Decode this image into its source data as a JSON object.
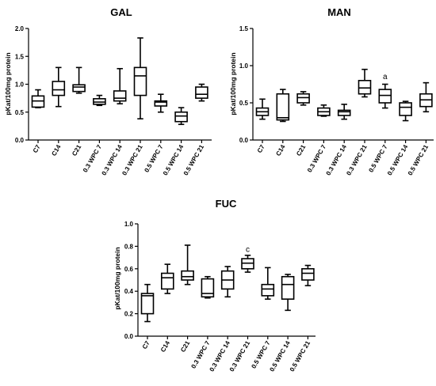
{
  "chart_data": [
    {
      "type": "box",
      "title": "GAL",
      "ylabel": "pKat/100mg protein",
      "ylim": [
        0,
        2.0
      ],
      "yticks": [
        "0.0",
        "0.5",
        "1.0",
        "1.5",
        "2.0"
      ],
      "categories": [
        "C7",
        "C14",
        "C21",
        "0.3 WPC 7",
        "0.3 WPC 14",
        "0.3 WPC 21",
        "0.5 WPC 7",
        "0.5 WPC 14",
        "0.5 WPC 21"
      ],
      "boxes": [
        {
          "min": 0.58,
          "q1": 0.59,
          "median": 0.7,
          "q3": 0.79,
          "max": 0.9
        },
        {
          "min": 0.6,
          "q1": 0.8,
          "median": 0.9,
          "q3": 1.05,
          "max": 1.3
        },
        {
          "min": 0.84,
          "q1": 0.87,
          "median": 0.95,
          "q3": 0.99,
          "max": 1.3
        },
        {
          "min": 0.62,
          "q1": 0.64,
          "median": 0.68,
          "q3": 0.74,
          "max": 0.8
        },
        {
          "min": 0.65,
          "q1": 0.7,
          "median": 0.75,
          "q3": 0.88,
          "max": 1.28
        },
        {
          "min": 0.38,
          "q1": 0.8,
          "median": 1.15,
          "q3": 1.3,
          "max": 1.83
        },
        {
          "min": 0.5,
          "q1": 0.61,
          "median": 0.68,
          "q3": 0.7,
          "max": 0.82
        },
        {
          "min": 0.28,
          "q1": 0.33,
          "median": 0.43,
          "q3": 0.5,
          "max": 0.58
        },
        {
          "min": 0.7,
          "q1": 0.75,
          "median": 0.82,
          "q3": 0.95,
          "max": 1.0
        }
      ],
      "annotations": []
    },
    {
      "type": "box",
      "title": "MAN",
      "ylabel": "pKat/100mg protein",
      "ylim": [
        0,
        1.5
      ],
      "yticks": [
        "0.0",
        "0.5",
        "1.0",
        "1.5"
      ],
      "categories": [
        "C7",
        "C14",
        "C21",
        "0.3 WPC 7",
        "0.3 WPC 14",
        "0.3 WPC 21",
        "0.5 WPC 7",
        "0.5 WPC 14",
        "0.5 WPC 21"
      ],
      "boxes": [
        {
          "min": 0.28,
          "q1": 0.33,
          "median": 0.38,
          "q3": 0.43,
          "max": 0.55
        },
        {
          "min": 0.25,
          "q1": 0.27,
          "median": 0.3,
          "q3": 0.62,
          "max": 0.68
        },
        {
          "min": 0.47,
          "q1": 0.5,
          "median": 0.57,
          "q3": 0.62,
          "max": 0.65
        },
        {
          "min": 0.32,
          "q1": 0.33,
          "median": 0.38,
          "q3": 0.43,
          "max": 0.47
        },
        {
          "min": 0.28,
          "q1": 0.33,
          "median": 0.38,
          "q3": 0.4,
          "max": 0.48
        },
        {
          "min": 0.58,
          "q1": 0.62,
          "median": 0.7,
          "q3": 0.8,
          "max": 0.95
        },
        {
          "min": 0.43,
          "q1": 0.5,
          "median": 0.6,
          "q3": 0.68,
          "max": 0.75
        },
        {
          "min": 0.26,
          "q1": 0.33,
          "median": 0.44,
          "q3": 0.5,
          "max": 0.52
        },
        {
          "min": 0.38,
          "q1": 0.45,
          "median": 0.54,
          "q3": 0.62,
          "max": 0.77
        }
      ],
      "annotations": [
        {
          "category": "0.5 WPC 7",
          "text": "a",
          "y": 0.82
        }
      ]
    },
    {
      "type": "box",
      "title": "FUC",
      "ylabel": "pKat/100mg protein",
      "ylim": [
        0,
        1.0
      ],
      "yticks": [
        "0.0",
        "0.2",
        "0.4",
        "0.6",
        "0.8",
        "1.0"
      ],
      "categories": [
        "C7",
        "C14",
        "C21",
        "0.3 WPC 7",
        "0.3 WPC 14",
        "0.3 WPC 21",
        "0.5 WPC 7",
        "0.5 WPC 14",
        "0.5 WPC 21"
      ],
      "boxes": [
        {
          "min": 0.13,
          "q1": 0.2,
          "median": 0.36,
          "q3": 0.38,
          "max": 0.46
        },
        {
          "min": 0.38,
          "q1": 0.42,
          "median": 0.52,
          "q3": 0.56,
          "max": 0.64
        },
        {
          "min": 0.46,
          "q1": 0.5,
          "median": 0.53,
          "q3": 0.58,
          "max": 0.81
        },
        {
          "min": 0.34,
          "q1": 0.35,
          "median": 0.38,
          "q3": 0.51,
          "max": 0.53
        },
        {
          "min": 0.35,
          "q1": 0.42,
          "median": 0.5,
          "q3": 0.58,
          "max": 0.62
        },
        {
          "min": 0.57,
          "q1": 0.6,
          "median": 0.65,
          "q3": 0.69,
          "max": 0.72
        },
        {
          "min": 0.33,
          "q1": 0.36,
          "median": 0.42,
          "q3": 0.46,
          "max": 0.61
        },
        {
          "min": 0.23,
          "q1": 0.33,
          "median": 0.46,
          "q3": 0.53,
          "max": 0.55
        },
        {
          "min": 0.45,
          "q1": 0.5,
          "median": 0.56,
          "q3": 0.6,
          "max": 0.63
        }
      ],
      "annotations": [
        {
          "category": "0.3 WPC 21",
          "text": "c",
          "y": 0.75
        }
      ]
    }
  ]
}
